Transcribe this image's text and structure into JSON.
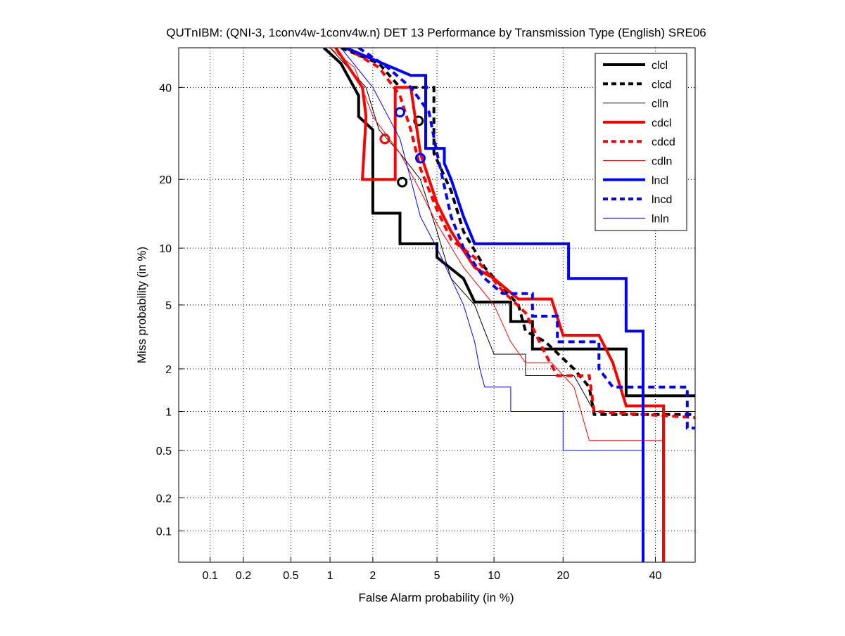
{
  "chart_data": {
    "type": "line",
    "title": "QUTnIBM: (QNI-3, 1conv4w-1conv4w.n) DET 13 Performance by Transmission Type (English) SRE06",
    "xlabel": "False Alarm probability (in %)",
    "ylabel": "Miss probability (in %)",
    "xscale": "probit",
    "yscale": "probit",
    "xlim": [
      0.05,
      50
    ],
    "ylim": [
      0.05,
      50
    ],
    "xticks": [
      0.1,
      0.2,
      0.5,
      1,
      2,
      5,
      10,
      20,
      40
    ],
    "xtick_labels": [
      "0.1",
      "0.2",
      "0.5",
      "1",
      "2",
      "5",
      "10",
      "20",
      "40"
    ],
    "yticks": [
      0.1,
      0.2,
      0.5,
      1,
      2,
      5,
      10,
      20,
      40
    ],
    "ytick_labels": [
      "0.1",
      "0.2",
      "0.5",
      "1",
      "2",
      "5",
      "10",
      "20",
      "40"
    ],
    "grid": true,
    "legend_position": "top-right",
    "series": [
      {
        "name": "clcl",
        "color": "#000000",
        "style": "solid",
        "weight": "thick",
        "points": [
          [
            0.9,
            50
          ],
          [
            1.2,
            46
          ],
          [
            1.6,
            38
          ],
          [
            1.6,
            33
          ],
          [
            2,
            30
          ],
          [
            2,
            14.5
          ],
          [
            3,
            14.5
          ],
          [
            3,
            10.5
          ],
          [
            5,
            10.5
          ],
          [
            5,
            9
          ],
          [
            7,
            7
          ],
          [
            8,
            5.2
          ],
          [
            12,
            5.2
          ],
          [
            12,
            4
          ],
          [
            15,
            4
          ],
          [
            15,
            2.7
          ],
          [
            33,
            2.7
          ],
          [
            33,
            1.3
          ],
          [
            50,
            1.3
          ]
        ],
        "markers": [
          [
            3.1,
            19.5
          ]
        ]
      },
      {
        "name": "clcd",
        "color": "#000000",
        "style": "dashed",
        "weight": "thick",
        "points": [
          [
            1.2,
            50
          ],
          [
            2.2,
            46
          ],
          [
            3,
            40
          ],
          [
            4.8,
            40
          ],
          [
            4.8,
            25
          ],
          [
            6,
            18
          ],
          [
            7,
            12
          ],
          [
            9,
            8
          ],
          [
            13,
            5
          ],
          [
            14,
            3.5
          ],
          [
            17,
            3
          ],
          [
            22,
            2
          ],
          [
            25,
            1.5
          ],
          [
            26,
            0.95
          ],
          [
            50,
            0.95
          ]
        ],
        "markers": [
          [
            3.9,
            32
          ]
        ]
      },
      {
        "name": "clln",
        "color": "#000000",
        "style": "solid",
        "weight": "thin",
        "points": [
          [
            1,
            50
          ],
          [
            1.8,
            40
          ],
          [
            2.2,
            30
          ],
          [
            3,
            25
          ],
          [
            4,
            20
          ],
          [
            5,
            12
          ],
          [
            6,
            7
          ],
          [
            8,
            5
          ],
          [
            9,
            3.5
          ],
          [
            10,
            2.5
          ],
          [
            14,
            2.5
          ],
          [
            14,
            1.8
          ],
          [
            22,
            1.8
          ],
          [
            26,
            1
          ],
          [
            50,
            1
          ],
          [
            50,
            0.05
          ]
        ],
        "markers": []
      },
      {
        "name": "cdcl",
        "color": "#ff0000",
        "style": "solid",
        "weight": "thick",
        "points": [
          [
            1.1,
            50
          ],
          [
            1.7,
            40
          ],
          [
            1.8,
            33
          ],
          [
            1.7,
            20
          ],
          [
            2.8,
            20
          ],
          [
            2.8,
            40
          ],
          [
            3.5,
            40
          ],
          [
            4,
            25
          ],
          [
            5,
            16
          ],
          [
            6,
            12
          ],
          [
            8,
            8
          ],
          [
            10,
            7
          ],
          [
            13,
            5.4
          ],
          [
            18,
            5.4
          ],
          [
            20,
            3.3
          ],
          [
            27,
            3.3
          ],
          [
            30,
            2.2
          ],
          [
            33,
            1.1
          ],
          [
            42,
            1.1
          ],
          [
            42,
            0.05
          ]
        ],
        "markers": [
          [
            2.4,
            28
          ]
        ]
      },
      {
        "name": "cdcd",
        "color": "#ff0000",
        "style": "dashed",
        "weight": "thick",
        "points": [
          [
            1.3,
            50
          ],
          [
            2.2,
            45
          ],
          [
            3,
            38
          ],
          [
            3.5,
            30
          ],
          [
            4,
            22
          ],
          [
            5,
            15
          ],
          [
            6,
            11
          ],
          [
            8,
            9
          ],
          [
            11,
            6
          ],
          [
            14,
            4.5
          ],
          [
            17,
            2.5
          ],
          [
            19,
            1.8
          ],
          [
            25,
            1.8
          ],
          [
            26,
            1
          ],
          [
            50,
            0.9
          ]
        ],
        "markers": []
      },
      {
        "name": "cdln",
        "color": "#ff0000",
        "style": "solid",
        "weight": "thin",
        "points": [
          [
            1,
            50
          ],
          [
            1.5,
            45
          ],
          [
            2,
            33
          ],
          [
            3,
            25
          ],
          [
            4,
            18
          ],
          [
            5,
            13
          ],
          [
            7,
            8
          ],
          [
            10,
            5
          ],
          [
            12,
            3
          ],
          [
            14,
            2.2
          ],
          [
            18,
            2.2
          ],
          [
            22,
            1.5
          ],
          [
            25,
            0.6
          ],
          [
            42,
            0.6
          ],
          [
            42,
            0.05
          ]
        ],
        "markers": []
      },
      {
        "name": "lncl",
        "color": "#0000ff",
        "style": "solid",
        "weight": "thick",
        "points": [
          [
            1.3,
            50
          ],
          [
            3.5,
            43
          ],
          [
            4.3,
            43
          ],
          [
            4.3,
            26
          ],
          [
            5.5,
            26
          ],
          [
            5.5,
            23
          ],
          [
            6,
            20
          ],
          [
            7,
            14
          ],
          [
            8,
            10.5
          ],
          [
            21,
            10.5
          ],
          [
            21,
            7
          ],
          [
            33,
            7
          ],
          [
            33,
            3.5
          ],
          [
            37,
            3.5
          ],
          [
            37,
            0.05
          ]
        ],
        "markers": [
          [
            3,
            34
          ]
        ]
      },
      {
        "name": "lncd",
        "color": "#0000ff",
        "style": "dashed",
        "weight": "thick",
        "points": [
          [
            1.6,
            50
          ],
          [
            2.5,
            45
          ],
          [
            3.5,
            40
          ],
          [
            4.5,
            34
          ],
          [
            5,
            25
          ],
          [
            6,
            14
          ],
          [
            7,
            10
          ],
          [
            9,
            7
          ],
          [
            11,
            5.8
          ],
          [
            15,
            5.8
          ],
          [
            15,
            4.3
          ],
          [
            19,
            4.3
          ],
          [
            19,
            3
          ],
          [
            27,
            3
          ],
          [
            27,
            2
          ],
          [
            30,
            1.5
          ],
          [
            48,
            1.5
          ],
          [
            48,
            0.75
          ],
          [
            50,
            0.75
          ]
        ],
        "markers": [
          [
            4,
            24
          ]
        ]
      },
      {
        "name": "lnln",
        "color": "#0000ff",
        "style": "solid",
        "weight": "thin",
        "points": [
          [
            1.2,
            50
          ],
          [
            2,
            40
          ],
          [
            3,
            28
          ],
          [
            3.5,
            20
          ],
          [
            4,
            14
          ],
          [
            5,
            10
          ],
          [
            6,
            7
          ],
          [
            7,
            5
          ],
          [
            8,
            3
          ],
          [
            8.5,
            2
          ],
          [
            9,
            1.5
          ],
          [
            12,
            1.5
          ],
          [
            12,
            1
          ],
          [
            20,
            1
          ],
          [
            20,
            0.5
          ],
          [
            37,
            0.5
          ],
          [
            37,
            0.05
          ]
        ],
        "markers": []
      }
    ]
  }
}
